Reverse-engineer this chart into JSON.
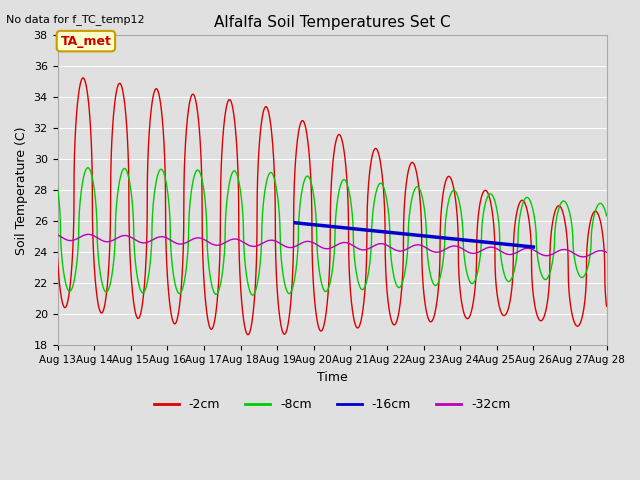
{
  "title": "Alfalfa Soil Temperatures Set C",
  "subtitle": "No data for f_TC_temp12",
  "xlabel": "Time",
  "ylabel": "Soil Temperature (C)",
  "ylim": [
    18,
    38
  ],
  "yticks": [
    18,
    20,
    22,
    24,
    26,
    28,
    30,
    32,
    34,
    36,
    38
  ],
  "x_labels": [
    "Aug 13",
    "Aug 14",
    "Aug 15",
    "Aug 16",
    "Aug 17",
    "Aug 18",
    "Aug 19",
    "Aug 20",
    "Aug 21",
    "Aug 22",
    "Aug 23",
    "Aug 24",
    "Aug 25",
    "Aug 26",
    "Aug 27",
    "Aug 28"
  ],
  "plot_bg_color": "#e0e0e0",
  "legend_label": "TA_met",
  "legend_box_color": "#ffffcc",
  "legend_box_border": "#cc9900",
  "series": [
    {
      "label": "-2cm",
      "color": "#dd0000",
      "linewidth": 1.0
    },
    {
      "label": "-8cm",
      "color": "#00cc00",
      "linewidth": 1.0
    },
    {
      "label": "-16cm",
      "color": "#0000cc",
      "linewidth": 2.5
    },
    {
      "label": "-32cm",
      "color": "#bb00bb",
      "linewidth": 1.0
    }
  ]
}
